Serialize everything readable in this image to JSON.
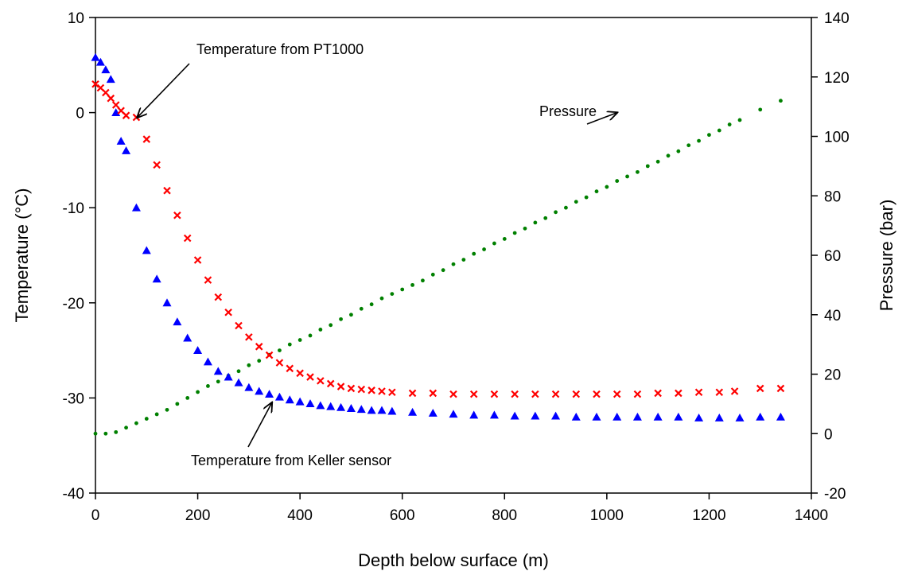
{
  "chart_data": {
    "type": "scatter",
    "title": "",
    "xlabel": "Depth below surface (m)",
    "ylabel_left": "Temperature  (°C)",
    "ylabel_right": "Pressure (bar)",
    "xlim": [
      0,
      1400
    ],
    "ylim_left": [
      -40,
      10
    ],
    "ylim_right": [
      -20,
      140
    ],
    "xticks": [
      0,
      200,
      400,
      600,
      800,
      1000,
      1200,
      1400
    ],
    "yticks_left": [
      -40,
      -30,
      -20,
      -10,
      0,
      10
    ],
    "yticks_right": [
      -20,
      0,
      20,
      40,
      60,
      80,
      100,
      120,
      140
    ],
    "grid": false,
    "legend": "none",
    "colors": {
      "pt1000": "#ff0000",
      "keller": "#0000ff",
      "pressure": "#008000"
    },
    "series": [
      {
        "key": "pt1000",
        "axis": "left",
        "marker": "x",
        "x": [
          0,
          10,
          20,
          30,
          40,
          50,
          60,
          80,
          100,
          120,
          140,
          160,
          180,
          200,
          220,
          240,
          260,
          280,
          300,
          320,
          340,
          360,
          380,
          400,
          420,
          440,
          460,
          480,
          500,
          520,
          540,
          560,
          580,
          620,
          660,
          700,
          740,
          780,
          820,
          860,
          900,
          940,
          980,
          1020,
          1060,
          1100,
          1140,
          1180,
          1220,
          1250,
          1300,
          1340
        ],
        "y": [
          3.0,
          2.6,
          2.1,
          1.5,
          0.8,
          0.2,
          -0.3,
          -0.5,
          -2.8,
          -5.5,
          -8.2,
          -10.8,
          -13.2,
          -15.5,
          -17.6,
          -19.4,
          -21.0,
          -22.4,
          -23.6,
          -24.6,
          -25.5,
          -26.3,
          -26.9,
          -27.4,
          -27.8,
          -28.2,
          -28.5,
          -28.8,
          -29.0,
          -29.1,
          -29.2,
          -29.3,
          -29.4,
          -29.5,
          -29.5,
          -29.6,
          -29.6,
          -29.6,
          -29.6,
          -29.6,
          -29.6,
          -29.6,
          -29.6,
          -29.6,
          -29.6,
          -29.5,
          -29.5,
          -29.4,
          -29.4,
          -29.3,
          -29.0,
          -29.0
        ]
      },
      {
        "key": "keller",
        "axis": "left",
        "marker": "triangle",
        "x": [
          0,
          10,
          20,
          30,
          40,
          50,
          60,
          80,
          100,
          120,
          140,
          160,
          180,
          200,
          220,
          240,
          260,
          280,
          300,
          320,
          340,
          360,
          380,
          400,
          420,
          440,
          460,
          480,
          500,
          520,
          540,
          560,
          580,
          620,
          660,
          700,
          740,
          780,
          820,
          860,
          900,
          940,
          980,
          1020,
          1060,
          1100,
          1140,
          1180,
          1220,
          1260,
          1300,
          1340
        ],
        "y": [
          5.8,
          5.3,
          4.5,
          3.5,
          0.0,
          -3.0,
          -4.0,
          -10.0,
          -14.5,
          -17.5,
          -20.0,
          -22.0,
          -23.7,
          -25.0,
          -26.2,
          -27.2,
          -27.8,
          -28.4,
          -28.9,
          -29.3,
          -29.6,
          -29.9,
          -30.2,
          -30.4,
          -30.6,
          -30.8,
          -30.9,
          -31.0,
          -31.1,
          -31.2,
          -31.3,
          -31.3,
          -31.4,
          -31.5,
          -31.6,
          -31.7,
          -31.8,
          -31.8,
          -31.9,
          -31.9,
          -31.9,
          -32.0,
          -32.0,
          -32.0,
          -32.0,
          -32.0,
          -32.0,
          -32.1,
          -32.1,
          -32.1,
          -32.0,
          -32.0
        ]
      },
      {
        "key": "pressure",
        "axis": "right",
        "marker": "dot",
        "x": [
          0,
          20,
          40,
          60,
          80,
          100,
          120,
          140,
          160,
          180,
          200,
          220,
          240,
          260,
          280,
          300,
          320,
          340,
          360,
          380,
          400,
          420,
          440,
          460,
          480,
          500,
          520,
          540,
          560,
          580,
          600,
          620,
          640,
          660,
          680,
          700,
          720,
          740,
          760,
          780,
          800,
          820,
          840,
          860,
          880,
          900,
          920,
          940,
          960,
          980,
          1000,
          1020,
          1040,
          1060,
          1080,
          1100,
          1120,
          1140,
          1160,
          1180,
          1200,
          1220,
          1240,
          1260,
          1300,
          1340
        ],
        "y": [
          0.0,
          0.0,
          0.5,
          2.0,
          3.5,
          5.0,
          6.5,
          8.0,
          10.0,
          12.0,
          14.0,
          16.0,
          17.5,
          19.5,
          21.0,
          23.0,
          24.5,
          26.5,
          28.0,
          30.0,
          31.5,
          33.0,
          35.0,
          36.5,
          38.5,
          40.0,
          42.0,
          43.5,
          45.5,
          47.0,
          48.5,
          50.0,
          51.5,
          53.5,
          55.0,
          57.0,
          58.5,
          60.5,
          62.0,
          64.0,
          65.5,
          67.5,
          69.0,
          71.0,
          72.5,
          74.5,
          76.0,
          78.0,
          79.5,
          81.5,
          83.0,
          85.0,
          86.5,
          88.0,
          90.0,
          91.5,
          93.5,
          95.0,
          97.0,
          98.5,
          100.5,
          102.0,
          104.0,
          105.5,
          109.0,
          112.0
        ]
      }
    ],
    "annotations": [
      {
        "text": "Temperature from PT1000",
        "label_anchor": "pt1000",
        "arrow_to": {
          "x": 82,
          "y": -0.5,
          "axis": "left"
        }
      },
      {
        "text": "Pressure",
        "label_anchor": "pressure",
        "arrow_to": {
          "x": 1020,
          "y": 108,
          "axis": "right"
        }
      },
      {
        "text": "Temperature from Keller sensor",
        "label_anchor": "keller",
        "arrow_to": {
          "x": 345,
          "y": -30.5,
          "axis": "left"
        }
      }
    ]
  }
}
